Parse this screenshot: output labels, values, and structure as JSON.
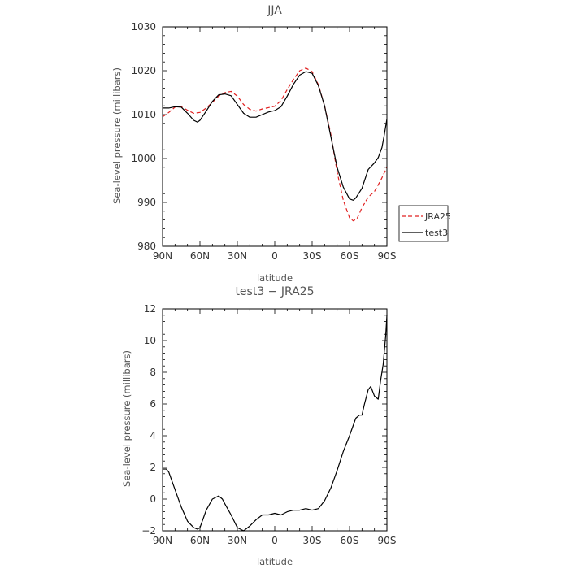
{
  "chart_data": [
    {
      "type": "line",
      "title": "JJA",
      "xlabel": "latitude",
      "ylabel": "Sea-level pressure (millibars)",
      "xlim": [
        90,
        -90
      ],
      "ylim": [
        980,
        1030
      ],
      "xticks": [
        "90N",
        "60N",
        "30N",
        "0",
        "30S",
        "60S",
        "90S"
      ],
      "yticks": [
        "980",
        "990",
        "1000",
        "1010",
        "1020",
        "1030"
      ],
      "grid": false,
      "legend": "right",
      "series": [
        {
          "name": "JRA25",
          "color": "#e02020",
          "dash": "dashed",
          "x": [
            90,
            85,
            80,
            75,
            70,
            65,
            60,
            55,
            50,
            45,
            40,
            35,
            30,
            25,
            20,
            15,
            10,
            5,
            0,
            -5,
            -10,
            -15,
            -20,
            -25,
            -30,
            -35,
            -40,
            -45,
            -50,
            -55,
            -60,
            -63,
            -66,
            -70,
            -75,
            -80,
            -85,
            -90
          ],
          "values": [
            1009.5,
            1010.5,
            1011.7,
            1011.8,
            1011.0,
            1010.3,
            1010.5,
            1011.5,
            1012.8,
            1014.2,
            1015.0,
            1015.3,
            1014.2,
            1012.3,
            1011.2,
            1010.8,
            1011.3,
            1011.6,
            1011.9,
            1013.2,
            1015.7,
            1018.0,
            1020.0,
            1020.6,
            1019.8,
            1016.8,
            1012.0,
            1005.5,
            997.0,
            990.5,
            986.5,
            985.8,
            986.3,
            988.8,
            991.2,
            992.5,
            995.0,
            998.0
          ]
        },
        {
          "name": "test3",
          "color": "#000000",
          "dash": "solid",
          "x": [
            90,
            85,
            80,
            75,
            70,
            65,
            62,
            60,
            55,
            50,
            45,
            40,
            35,
            30,
            25,
            20,
            15,
            10,
            5,
            0,
            -5,
            -10,
            -15,
            -20,
            -25,
            -30,
            -35,
            -40,
            -45,
            -50,
            -55,
            -60,
            -63,
            -65,
            -70,
            -75,
            -80,
            -83,
            -86,
            -88,
            -90
          ],
          "values": [
            1011.5,
            1011.5,
            1011.8,
            1011.7,
            1010.3,
            1008.7,
            1008.3,
            1008.7,
            1010.8,
            1013.0,
            1014.5,
            1014.7,
            1014.3,
            1012.3,
            1010.3,
            1009.4,
            1009.4,
            1010.0,
            1010.6,
            1010.9,
            1011.8,
            1014.2,
            1016.9,
            1019.0,
            1019.8,
            1019.4,
            1016.6,
            1012.0,
            1005.0,
            998.0,
            993.5,
            990.8,
            990.5,
            991.0,
            993.2,
            997.5,
            999.0,
            1000.2,
            1002.5,
            1005.5,
            1009.0
          ]
        }
      ]
    },
    {
      "type": "line",
      "title": "test3 − JRA25",
      "xlabel": "latitude",
      "ylabel": "Sea-level pressure (millibars)",
      "xlim": [
        90,
        -90
      ],
      "ylim": [
        -2,
        12
      ],
      "xticks": [
        "90N",
        "60N",
        "30N",
        "0",
        "30S",
        "60S",
        "90S"
      ],
      "yticks": [
        "−2",
        "0",
        "2",
        "4",
        "6",
        "8",
        "10",
        "12"
      ],
      "grid": false,
      "legend": "none",
      "series": [
        {
          "color": "#000000",
          "dash": "solid",
          "x": [
            90,
            87,
            85,
            80,
            75,
            70,
            65,
            62,
            60,
            55,
            50,
            45,
            42,
            40,
            35,
            30,
            25,
            20,
            15,
            10,
            5,
            0,
            -5,
            -10,
            -15,
            -20,
            -25,
            -30,
            -35,
            -40,
            -45,
            -50,
            -55,
            -60,
            -65,
            -68,
            -70,
            -72,
            -75,
            -77,
            -80,
            -83,
            -85,
            -87,
            -89,
            -90
          ],
          "values": [
            1.9,
            1.9,
            1.7,
            0.6,
            -0.5,
            -1.4,
            -1.8,
            -1.9,
            -1.8,
            -0.7,
            0.0,
            0.2,
            0.0,
            -0.3,
            -1.0,
            -1.8,
            -2.0,
            -1.7,
            -1.3,
            -1.0,
            -1.0,
            -0.9,
            -1.0,
            -0.8,
            -0.7,
            -0.7,
            -0.6,
            -0.7,
            -0.6,
            -0.1,
            0.7,
            1.8,
            3.0,
            4.0,
            5.1,
            5.3,
            5.3,
            6.0,
            6.9,
            7.1,
            6.5,
            6.3,
            7.5,
            8.5,
            10.3,
            11.6
          ]
        }
      ]
    }
  ]
}
